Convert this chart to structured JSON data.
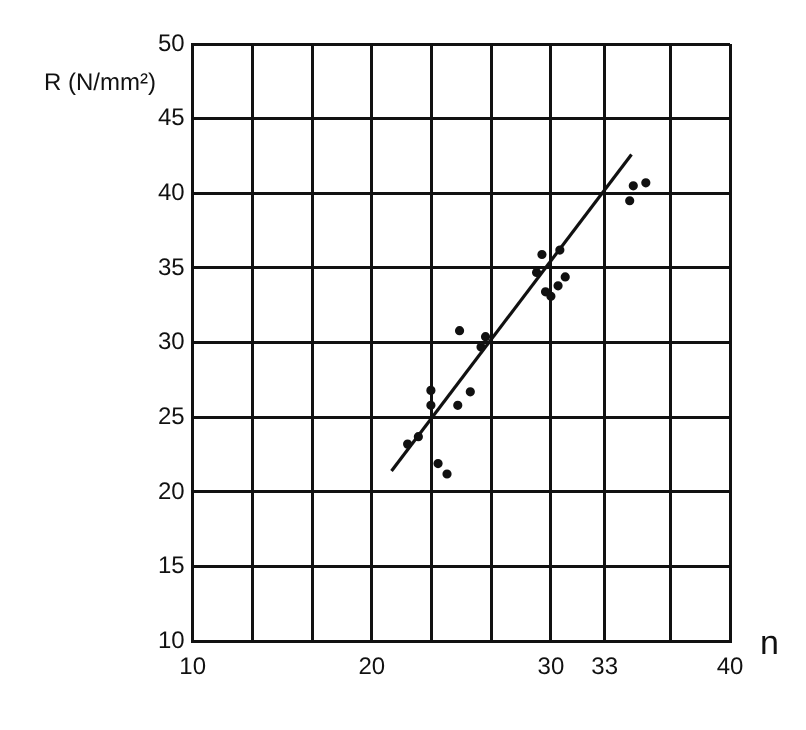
{
  "chart_data": {
    "type": "scatter",
    "ylabel": "R (N/mm²)",
    "xlabel": "n",
    "xlim": [
      10,
      40
    ],
    "xticks": [
      10,
      {
        "value": 13.33,
        "label": null
      },
      {
        "value": 16.67,
        "label": null
      },
      20,
      {
        "value": 23.33,
        "label": null
      },
      {
        "value": 26.67,
        "label": null
      },
      30,
      33,
      {
        "value": 36.67,
        "label": null
      },
      40
    ],
    "ylim": [
      10,
      50
    ],
    "yticks": [
      10,
      15,
      20,
      25,
      30,
      35,
      40,
      45,
      50
    ],
    "grid": true,
    "marker": "circle",
    "series": [
      {
        "color": "#111111",
        "x": [
          22.0,
          22.6,
          23.3,
          23.3,
          23.7,
          24.2,
          24.9,
          24.8,
          25.5,
          26.1,
          26.35,
          29.2,
          29.5,
          30.5,
          29.7,
          30.0,
          30.4,
          30.8,
          34.4,
          34.6,
          35.3
        ],
        "values": [
          23.2,
          23.7,
          26.8,
          25.8,
          21.9,
          21.2,
          30.8,
          25.8,
          26.7,
          29.7,
          30.4,
          34.7,
          35.9,
          36.2,
          33.4,
          33.1,
          33.8,
          34.4,
          39.5,
          40.5,
          40.7
        ]
      },
      {
        "type": "line",
        "color": "#111111",
        "x": [
          21.1,
          34.5
        ],
        "values": [
          21.4,
          42.6
        ],
        "marker": "none",
        "line_style": "solid"
      }
    ]
  }
}
